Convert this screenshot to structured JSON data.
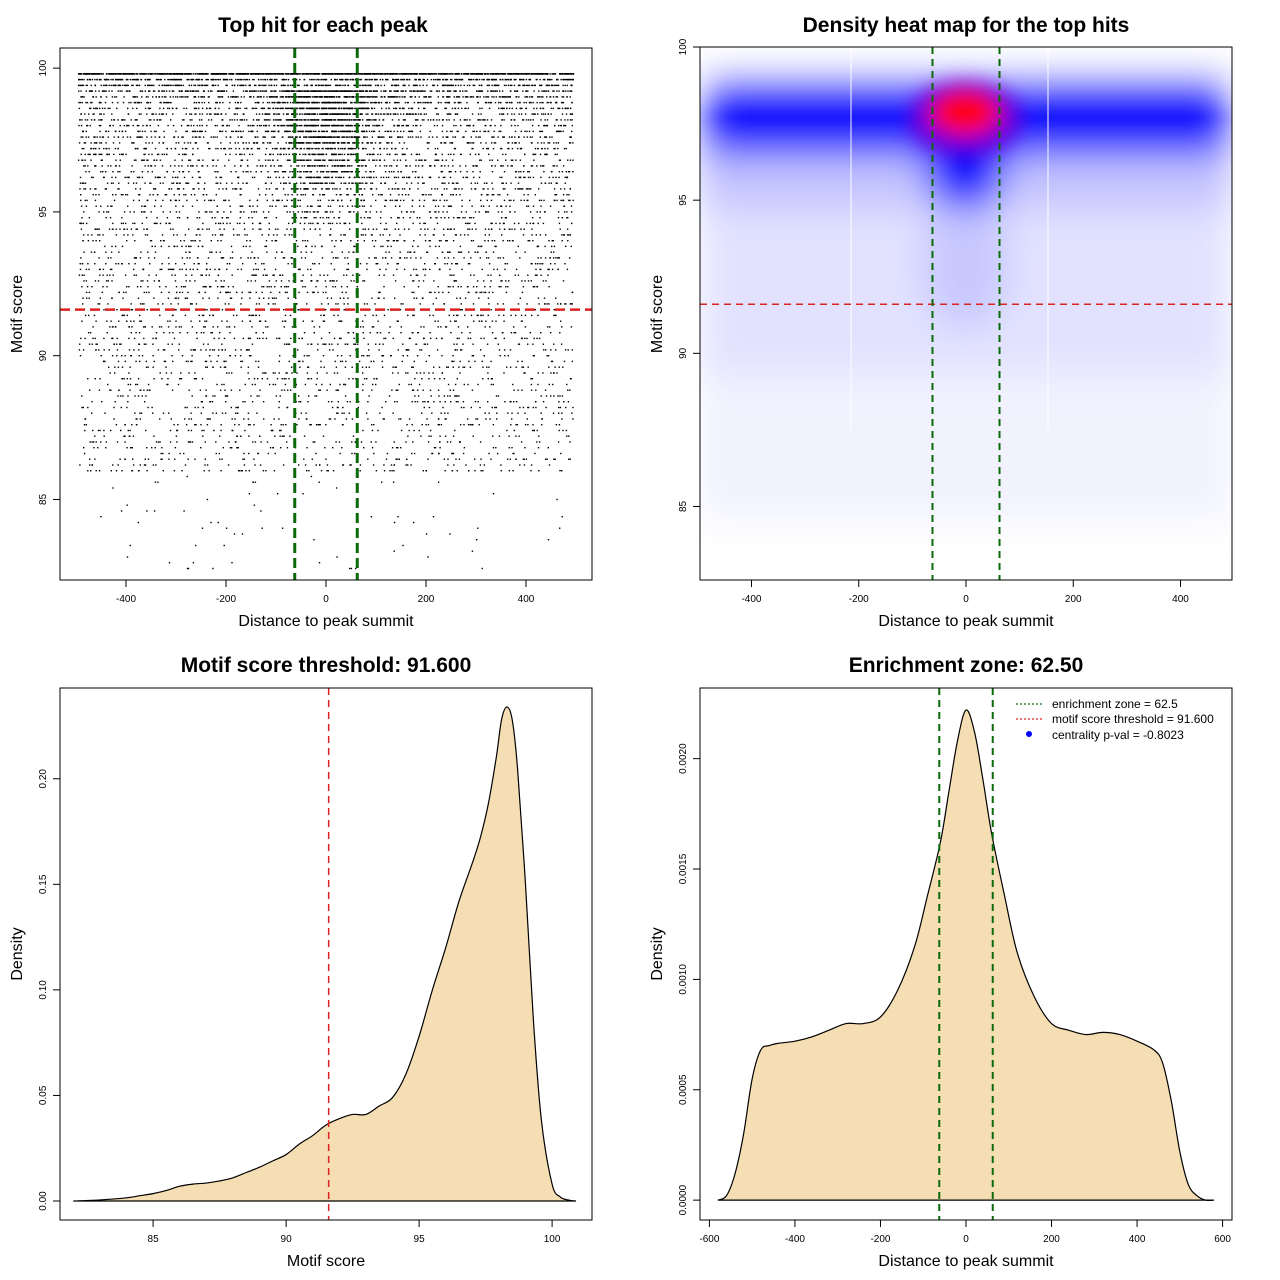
{
  "colors": {
    "threshold_red": "#dd2222",
    "zone_green": "#0a6a0a",
    "density_fill": "#f5deb3",
    "heat_low": "#ffffff",
    "heat_mid": "#0000ff",
    "heat_high": "#ff0000",
    "point": "#000000"
  },
  "chart_data": [
    {
      "type": "scatter",
      "title": "Top hit for each peak",
      "xlabel": "Distance to peak summit",
      "ylabel": "Motif score",
      "xlim": [
        -532,
        532
      ],
      "ylim": [
        82.2,
        100.7
      ],
      "xticks": [
        -400,
        -200,
        0,
        200,
        400
      ],
      "yticks": [
        85,
        90,
        95,
        100
      ],
      "threshold_y": 91.6,
      "zone_x": [
        -62.5,
        62.5
      ],
      "grid": false,
      "n_points_estimate": 20000,
      "points_rendered_as": "dense dot cloud, uniform in x over [-500, 500]; score density peaking at 97-99, concentrated near x=0 at high scores"
    },
    {
      "type": "heatmap",
      "title": "Density heat map for the top hits",
      "xlabel": "Distance to peak summit",
      "ylabel": "Motif score",
      "xlim": [
        -496,
        496
      ],
      "ylim": [
        82.6,
        100
      ],
      "xticks": [
        -400,
        -200,
        0,
        200,
        400
      ],
      "yticks": [
        85,
        90,
        95,
        100
      ],
      "threshold_y": 91.6,
      "zone_x": [
        -62.5,
        62.5
      ],
      "grid": false,
      "colorscale": [
        "white",
        "blue",
        "red"
      ],
      "hotspot": {
        "x": 5,
        "y": 98.0
      }
    },
    {
      "type": "area",
      "title": "Motif score threshold: 91.600",
      "xlabel": "Motif score",
      "ylabel": "Density",
      "xlim": [
        81.5,
        101.5
      ],
      "ylim": [
        -0.009,
        0.243
      ],
      "xticks": [
        85,
        90,
        95,
        100
      ],
      "yticks": [
        0.0,
        0.05,
        0.1,
        0.15,
        0.2
      ],
      "ytick_labels": [
        "0.00",
        "0.05",
        "0.10",
        "0.15",
        "0.20"
      ],
      "threshold_x": 91.6,
      "x": [
        82.0,
        83.0,
        84.0,
        84.5,
        85.0,
        85.5,
        86.0,
        86.5,
        87.0,
        87.5,
        88.0,
        88.5,
        89.0,
        89.5,
        90.0,
        90.5,
        91.0,
        91.5,
        92.0,
        92.5,
        93.0,
        93.5,
        94.0,
        94.5,
        95.0,
        95.5,
        96.0,
        96.5,
        97.0,
        97.3,
        97.6,
        97.9,
        98.1,
        98.3,
        98.5,
        98.7,
        99.0,
        99.3,
        99.6,
        100.0,
        100.3,
        100.6,
        100.9
      ],
      "y": [
        0.0,
        0.0005,
        0.0015,
        0.0025,
        0.0035,
        0.005,
        0.007,
        0.008,
        0.0085,
        0.0095,
        0.011,
        0.0135,
        0.016,
        0.019,
        0.022,
        0.027,
        0.031,
        0.036,
        0.039,
        0.041,
        0.041,
        0.045,
        0.049,
        0.06,
        0.078,
        0.1,
        0.12,
        0.142,
        0.16,
        0.172,
        0.188,
        0.21,
        0.228,
        0.234,
        0.228,
        0.205,
        0.15,
        0.085,
        0.038,
        0.008,
        0.002,
        0.0005,
        0.0
      ]
    },
    {
      "type": "area",
      "title": "Enrichment zone: 62.50",
      "xlabel": "Distance to peak summit",
      "ylabel": "Density",
      "xlim": [
        -622,
        622
      ],
      "ylim": [
        -9e-05,
        0.00232
      ],
      "xticks": [
        -600,
        -400,
        -200,
        0,
        200,
        400,
        600
      ],
      "yticks": [
        0.0,
        0.0005,
        0.001,
        0.0015,
        0.002
      ],
      "ytick_labels": [
        "0.0000",
        "0.0005",
        "0.0010",
        "0.0015",
        "0.0020"
      ],
      "zone_x": [
        -62.5,
        62.5
      ],
      "x": [
        -580,
        -560,
        -540,
        -520,
        -500,
        -480,
        -460,
        -440,
        -400,
        -360,
        -320,
        -280,
        -240,
        -200,
        -160,
        -120,
        -90,
        -60,
        -40,
        -20,
        0,
        20,
        40,
        60,
        90,
        120,
        160,
        200,
        240,
        280,
        320,
        360,
        400,
        440,
        460,
        480,
        500,
        520,
        540,
        560,
        580
      ],
      "y": [
        0.0,
        2e-05,
        0.00012,
        0.0003,
        0.00055,
        0.00068,
        0.0007,
        0.00071,
        0.00072,
        0.00074,
        0.00077,
        0.0008,
        0.0008,
        0.00083,
        0.00095,
        0.00115,
        0.00138,
        0.00162,
        0.00185,
        0.00208,
        0.00222,
        0.00212,
        0.0019,
        0.00166,
        0.00138,
        0.00112,
        0.00092,
        0.0008,
        0.00077,
        0.00075,
        0.00076,
        0.00075,
        0.00072,
        0.00068,
        0.00062,
        0.00045,
        0.00022,
        7e-05,
        2e-05,
        0.0,
        0.0
      ],
      "legend": {
        "placement": "top-right",
        "entries": [
          {
            "label": "enrichment zone = 62.5",
            "style": "dotted",
            "color": "#0a6a0a"
          },
          {
            "label": "motif score threshold = 91.600",
            "style": "dotted",
            "color": "#dd2222"
          },
          {
            "label": "centrality p-val = -0.8023",
            "style": "point",
            "color": "#0000ff"
          }
        ]
      }
    }
  ]
}
